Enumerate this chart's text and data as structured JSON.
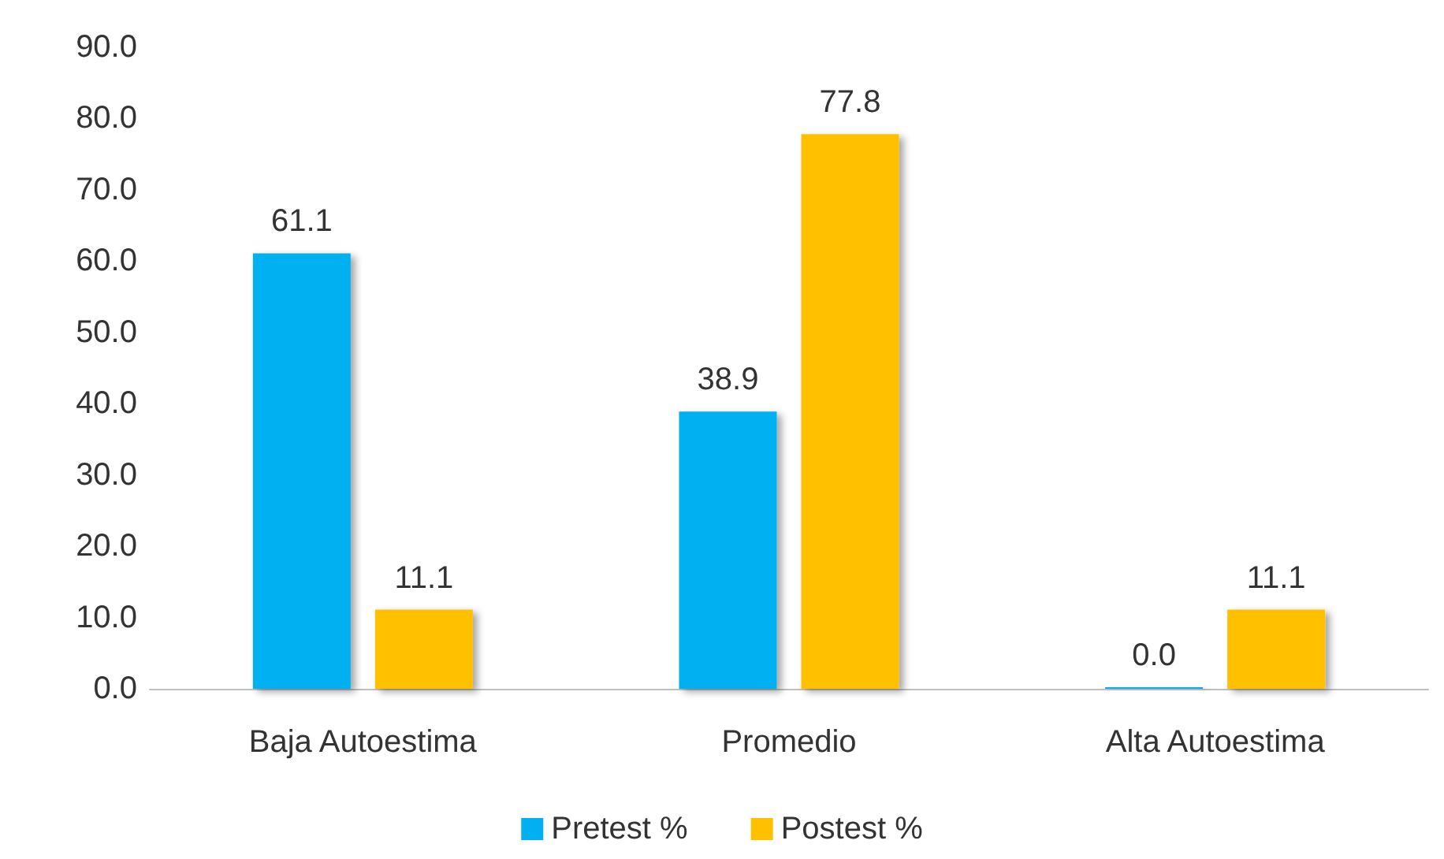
{
  "chart_data": {
    "type": "bar",
    "categories": [
      "Baja Autoestima",
      "Promedio",
      "Alta Autoestima"
    ],
    "series": [
      {
        "name": "Pretest %",
        "color": "#00b0f0",
        "values": [
          61.1,
          38.9,
          0
        ],
        "value_labels": [
          "61.1",
          "38.9",
          "0.0"
        ]
      },
      {
        "name": "Postest %",
        "color": "#ffc000",
        "values": [
          11.1,
          77.8,
          11.1
        ],
        "value_labels": [
          "11.1",
          "77.8",
          "11.1"
        ]
      }
    ],
    "ylim": [
      0,
      90
    ],
    "yticks": [
      {
        "value": 0,
        "label": "0.0"
      },
      {
        "value": 10,
        "label": "10.0"
      },
      {
        "value": 20,
        "label": "20.0"
      },
      {
        "value": 30,
        "label": "30.0"
      },
      {
        "value": 40,
        "label": "40.0"
      },
      {
        "value": 50,
        "label": "50.0"
      },
      {
        "value": 60,
        "label": "60.0"
      },
      {
        "value": 70,
        "label": "70.0"
      },
      {
        "value": 80,
        "label": "80.0"
      },
      {
        "value": 90,
        "label": "90.0"
      }
    ],
    "grid": false,
    "legend": "bottom"
  }
}
